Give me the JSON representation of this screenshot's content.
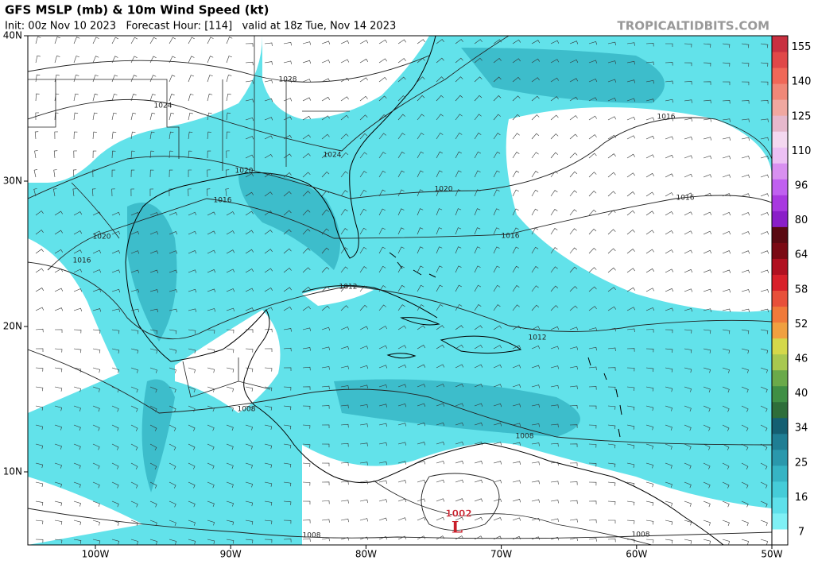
{
  "header": {
    "title": "GFS MSLP (mb) & 10m Wind Speed (kt)",
    "subtitle": "Init: 00z Nov 10 2023   Forecast Hour: [114]   valid at 18z Tue, Nov 14 2023",
    "credit": "TROPICALTIDBITS.COM"
  },
  "map": {
    "lat_labels": [
      "40N",
      "30N",
      "20N",
      "10N"
    ],
    "lon_labels": [
      "100W",
      "90W",
      "80W",
      "70W",
      "60W",
      "50W"
    ],
    "isobar_labels": [
      1028,
      1024,
      1024,
      1020,
      1016,
      1020,
      1016,
      1020,
      1016,
      1016,
      1016,
      1012,
      1012,
      1008,
      1008,
      1008,
      1008
    ],
    "low": {
      "pressure": 1002,
      "label": "L"
    }
  },
  "colorbar": {
    "labels": [
      7,
      16,
      25,
      34,
      40,
      46,
      52,
      58,
      64,
      80,
      96,
      110,
      125,
      140,
      155
    ],
    "colors": [
      "#ffffff",
      "#7ff0f5",
      "#5ee0ea",
      "#45ccd8",
      "#36b4c4",
      "#2a98ac",
      "#1f7e94",
      "#145f72",
      "#2e6e3a",
      "#3f8f45",
      "#6aaa4a",
      "#a8c850",
      "#d4d84a",
      "#f0a040",
      "#f07a3a",
      "#e8503a",
      "#d8202a",
      "#b01020",
      "#7a0a14",
      "#5a0a12",
      "#8a1ec8",
      "#a838e0",
      "#c060f0",
      "#d890f0",
      "#ecc0f4",
      "#f4d8f0",
      "#e6b8cc",
      "#f0a8a0",
      "#f08878",
      "#f06858",
      "#e04848",
      "#c83040"
    ]
  }
}
